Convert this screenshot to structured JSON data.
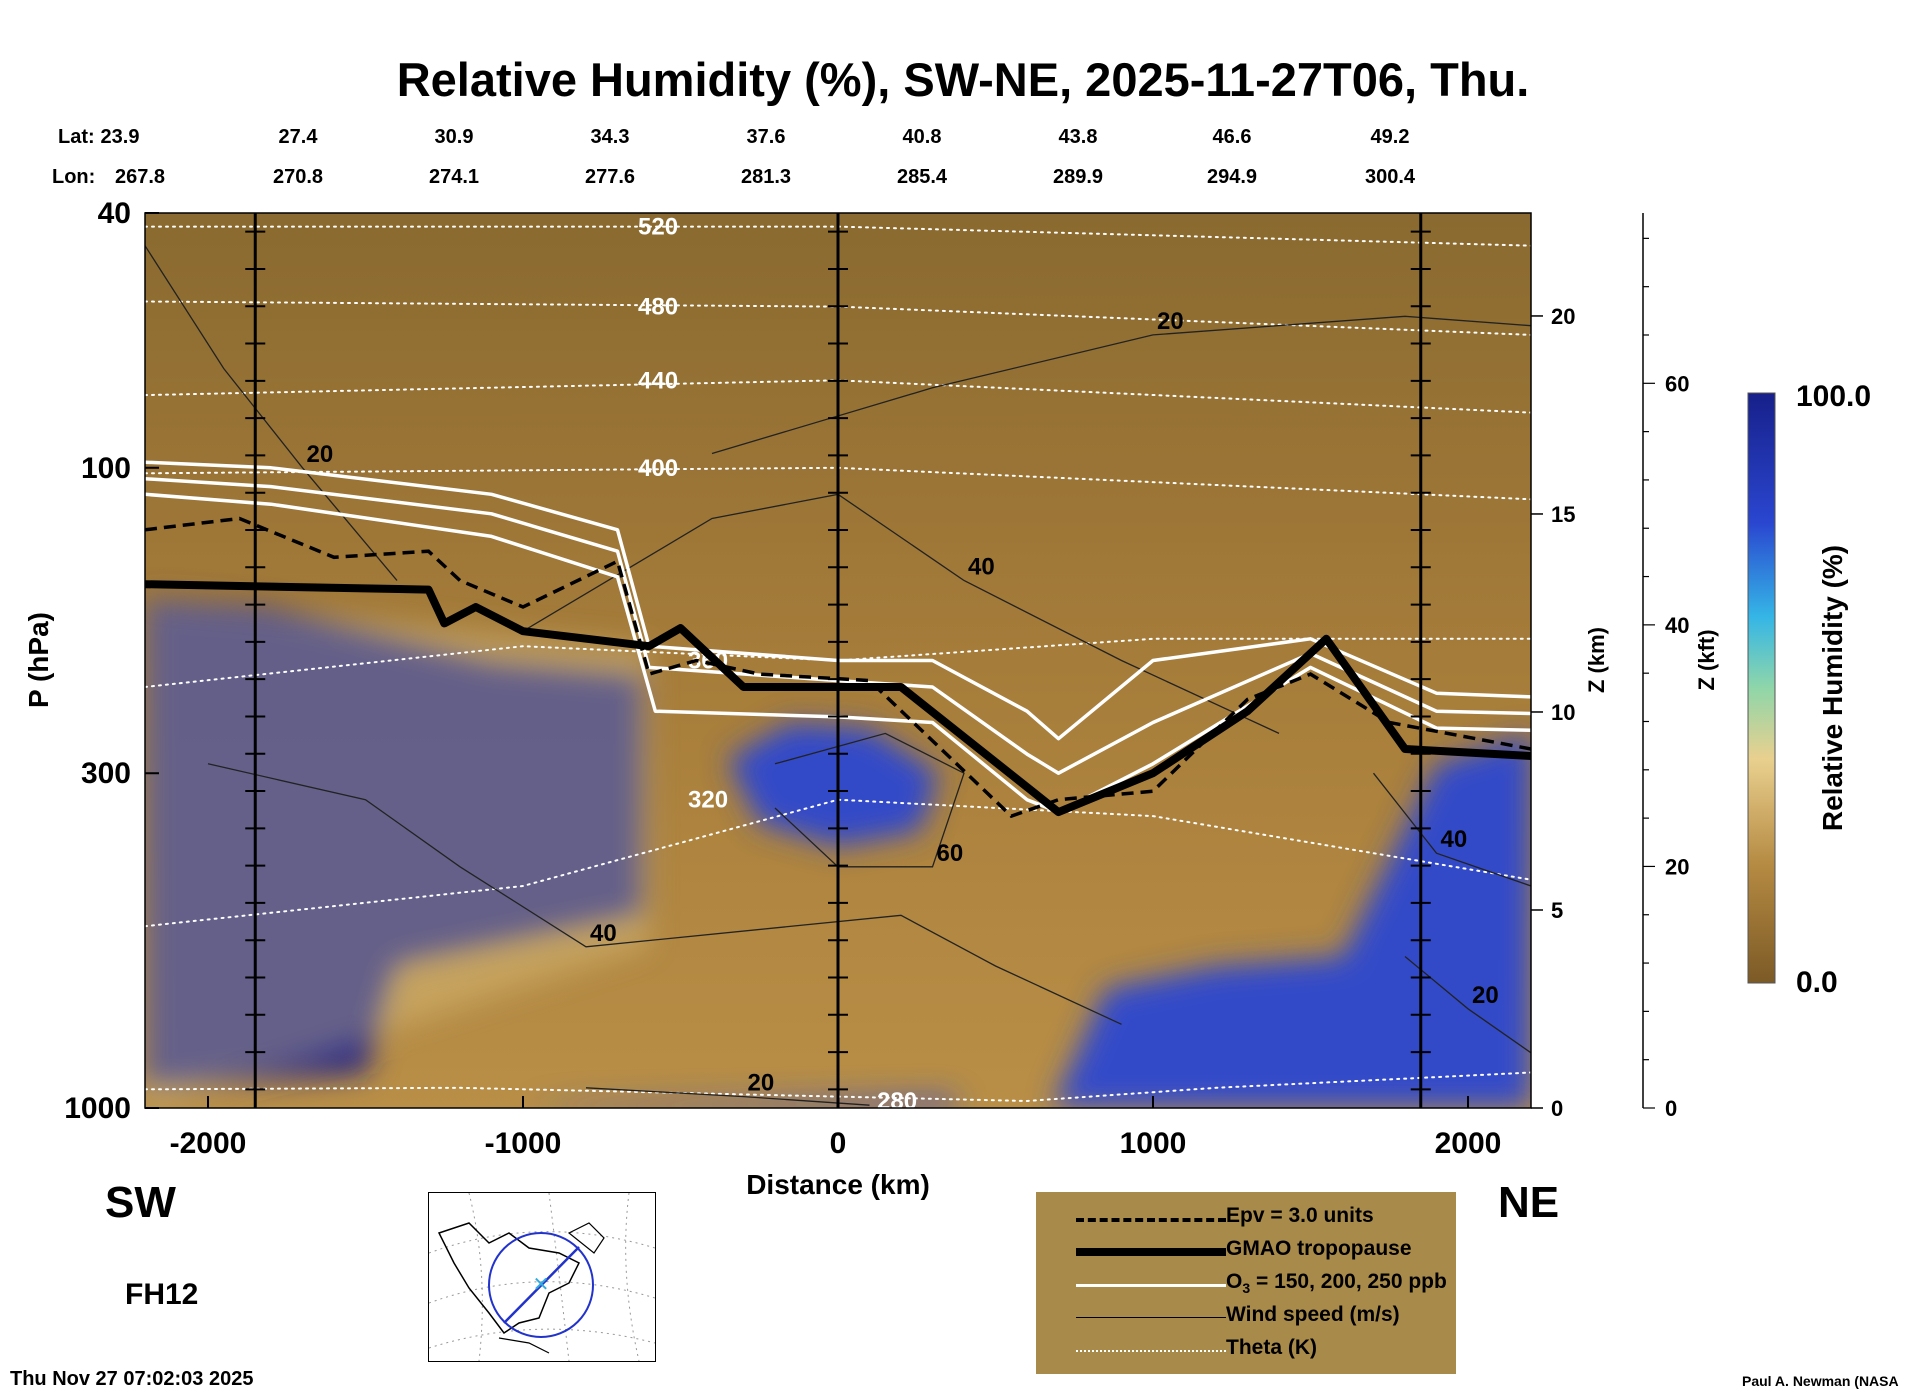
{
  "title": "Relative Humidity (%), SW-NE, 2025-11-27T06, Thu.",
  "coords": {
    "lat_label": "Lat:",
    "lon_label": "Lon:",
    "lat": [
      "23.9",
      "27.4",
      "30.9",
      "34.3",
      "37.6",
      "40.8",
      "43.8",
      "46.6",
      "49.2"
    ],
    "lon": [
      "267.8",
      "270.8",
      "274.1",
      "277.6",
      "281.3",
      "285.4",
      "289.9",
      "294.9",
      "300.4"
    ]
  },
  "chart_data": {
    "type": "heatmap",
    "variable": "Relative Humidity (%)",
    "xlabel": "Distance (km)",
    "ylabel": "P (hPa)",
    "xlim": [
      -2200,
      2200
    ],
    "ylim": [
      1000,
      40
    ],
    "y_scale": "log",
    "x_ticks": [
      -2000,
      -1000,
      0,
      1000,
      2000
    ],
    "y_ticks": [
      40,
      100,
      300,
      1000
    ],
    "right_axis_km": {
      "label": "Z (km)",
      "ticks": [
        0,
        5,
        10,
        15,
        20
      ]
    },
    "right_axis_kft": {
      "label": "Z (kft)",
      "ticks": [
        0,
        20,
        40,
        60
      ]
    },
    "colorbar": {
      "label": "Relative Humidity (%)",
      "min_label": "0.0",
      "max_label": "100.0",
      "min": 0,
      "max": 100
    },
    "vertical_lines_km": [
      -1850,
      0,
      1850
    ],
    "colors": {
      "dry_dark": "#7c5a26",
      "dry": "#a67c3a",
      "tan": "#c9a05a",
      "light": "#e9d08f",
      "mid": "#8fd6a9",
      "wet": "#35b6e6",
      "very_wet": "#2a46d0",
      "saturated": "#17208a"
    },
    "humidity_regions": [
      {
        "rh": 95,
        "x": [
          -2200,
          -1500,
          -1400,
          -620,
          -620,
          -1100,
          -1800,
          -2200
        ],
        "p": [
          930,
          880,
          600,
          500,
          210,
          200,
          165,
          160
        ]
      },
      {
        "rh": 92,
        "x": [
          -350,
          -150,
          100,
          320,
          260,
          0,
          -250
        ],
        "p": [
          285,
          250,
          255,
          300,
          370,
          390,
          360
        ]
      },
      {
        "rh": 90,
        "x": [
          680,
          850,
          1200,
          1600,
          1900,
          2200,
          2200,
          1650,
          1200,
          900,
          700
        ],
        "p": [
          1000,
          650,
          600,
          580,
          290,
          260,
          1000,
          1000,
          1000,
          1000,
          1000
        ]
      },
      {
        "rh": 93,
        "x": [
          -1000,
          400,
          350,
          -800
        ],
        "p": [
          1000,
          1000,
          960,
          985
        ]
      }
    ],
    "gmao_tropopause": {
      "x": [
        -2200,
        -1300,
        -1250,
        -1150,
        -1000,
        -600,
        -500,
        -300,
        200,
        700,
        1000,
        1300,
        1550,
        1800,
        2200
      ],
      "p": [
        152,
        155,
        175,
        165,
        180,
        190,
        178,
        220,
        220,
        345,
        300,
        240,
        185,
        275,
        282
      ]
    },
    "epv_3_units": {
      "x": [
        -2200,
        -1900,
        -1600,
        -1300,
        -1200,
        -1000,
        -700,
        -600,
        -450,
        -250,
        100,
        550,
        700,
        1000,
        1300,
        1500,
        1750,
        2200
      ],
      "p": [
        125,
        120,
        138,
        135,
        150,
        165,
        140,
        210,
        200,
        210,
        215,
        350,
        330,
        320,
        230,
        210,
        250,
        275
      ]
    },
    "ozone_contours_ppb": [
      150,
      200,
      250
    ],
    "ozone_150": {
      "x": [
        -2200,
        -1800,
        -1100,
        -700,
        -600,
        0,
        300,
        600,
        700,
        1000,
        1500,
        1900,
        2200
      ],
      "p": [
        98,
        100,
        110,
        125,
        190,
        200,
        200,
        240,
        265,
        200,
        185,
        225,
        228
      ]
    },
    "ozone_200": {
      "x": [
        -2200,
        -1800,
        -1100,
        -700,
        -600,
        0,
        300,
        600,
        700,
        1000,
        1500,
        1900,
        2200
      ],
      "p": [
        104,
        107,
        118,
        135,
        205,
        215,
        220,
        280,
        300,
        250,
        195,
        240,
        242
      ]
    },
    "ozone_250": {
      "x": [
        -2200,
        -1800,
        -1100,
        -700,
        -580,
        0,
        300,
        600,
        700,
        1000,
        1500,
        1900,
        2200
      ],
      "p": [
        110,
        114,
        128,
        148,
        240,
        245,
        250,
        330,
        345,
        290,
        205,
        255,
        257
      ]
    },
    "theta_K": [
      {
        "value": 280,
        "label": "280",
        "x": [
          -2200,
          -1200,
          0,
          600,
          1200,
          2200
        ],
        "p": [
          935,
          930,
          960,
          975,
          930,
          880
        ]
      },
      {
        "value": 320,
        "label": "320",
        "x": [
          -2200,
          -1000,
          0,
          1000,
          2200
        ],
        "p": [
          520,
          450,
          330,
          350,
          440
        ]
      },
      {
        "value": 360,
        "label": "360",
        "x": [
          -2200,
          -1000,
          0,
          1000,
          2200
        ],
        "p": [
          220,
          190,
          200,
          185,
          185
        ]
      },
      {
        "value": 400,
        "label": "400",
        "x": [
          -2200,
          0,
          2200
        ],
        "p": [
          102,
          100,
          112
        ]
      },
      {
        "value": 440,
        "label": "440",
        "x": [
          -2200,
          0,
          2200
        ],
        "p": [
          77,
          73,
          82
        ]
      },
      {
        "value": 480,
        "label": "480",
        "x": [
          -2200,
          0,
          2200
        ],
        "p": [
          55,
          56,
          62
        ]
      },
      {
        "value": 520,
        "label": "520",
        "x": [
          -2200,
          0,
          2200
        ],
        "p": [
          42,
          42,
          45
        ]
      }
    ],
    "wind_speed_ms": [
      {
        "value": 20,
        "label": "20",
        "x": [
          -2200,
          -1950,
          -1700,
          -1400
        ],
        "p": [
          45,
          70,
          100,
          150
        ]
      },
      {
        "value": 20,
        "label": "20",
        "x": [
          -400,
          300,
          1000,
          1800,
          2200
        ],
        "p": [
          95,
          75,
          62,
          58,
          60
        ]
      },
      {
        "value": 40,
        "label": "40",
        "x": [
          -1000,
          -400,
          0,
          400,
          900,
          1400
        ],
        "p": [
          180,
          120,
          110,
          150,
          200,
          260
        ]
      },
      {
        "value": 40,
        "label": "40",
        "x": [
          -2000,
          -1500,
          -1200,
          -800,
          200,
          500,
          900
        ],
        "p": [
          290,
          330,
          420,
          560,
          500,
          600,
          740
        ]
      },
      {
        "value": 60,
        "label": "60",
        "x": [
          -200,
          150,
          400,
          300,
          0,
          -200
        ],
        "p": [
          290,
          260,
          300,
          420,
          420,
          340
        ]
      },
      {
        "value": 40,
        "label": "40",
        "x": [
          1700,
          1900,
          2200
        ],
        "p": [
          300,
          400,
          450
        ]
      },
      {
        "value": 20,
        "label": "20",
        "x": [
          1800,
          2000,
          2200
        ],
        "p": [
          580,
          700,
          820
        ]
      },
      {
        "value": 20,
        "label": "20",
        "x": [
          -800,
          -300,
          100
        ],
        "p": [
          930,
          960,
          990
        ]
      }
    ]
  },
  "directions": {
    "left": "SW",
    "right": "NE"
  },
  "forecast_hour": "FH12",
  "timestamp": "Thu Nov 27 07:02:03 2025",
  "credit": "Paul A. Newman (NASA",
  "legend": {
    "items": [
      {
        "label": "Epv = 3.0 units",
        "style": "dashed-black"
      },
      {
        "label": "GMAO tropopause",
        "style": "thick-black"
      },
      {
        "label_main": "O",
        "label_sub": "3",
        "label_rest": " = 150, 200, 250 ppb",
        "style": "white"
      },
      {
        "label": "Wind speed (m/s)",
        "style": "thin-black"
      },
      {
        "label": "Theta (K)",
        "style": "dotted-white"
      }
    ]
  }
}
